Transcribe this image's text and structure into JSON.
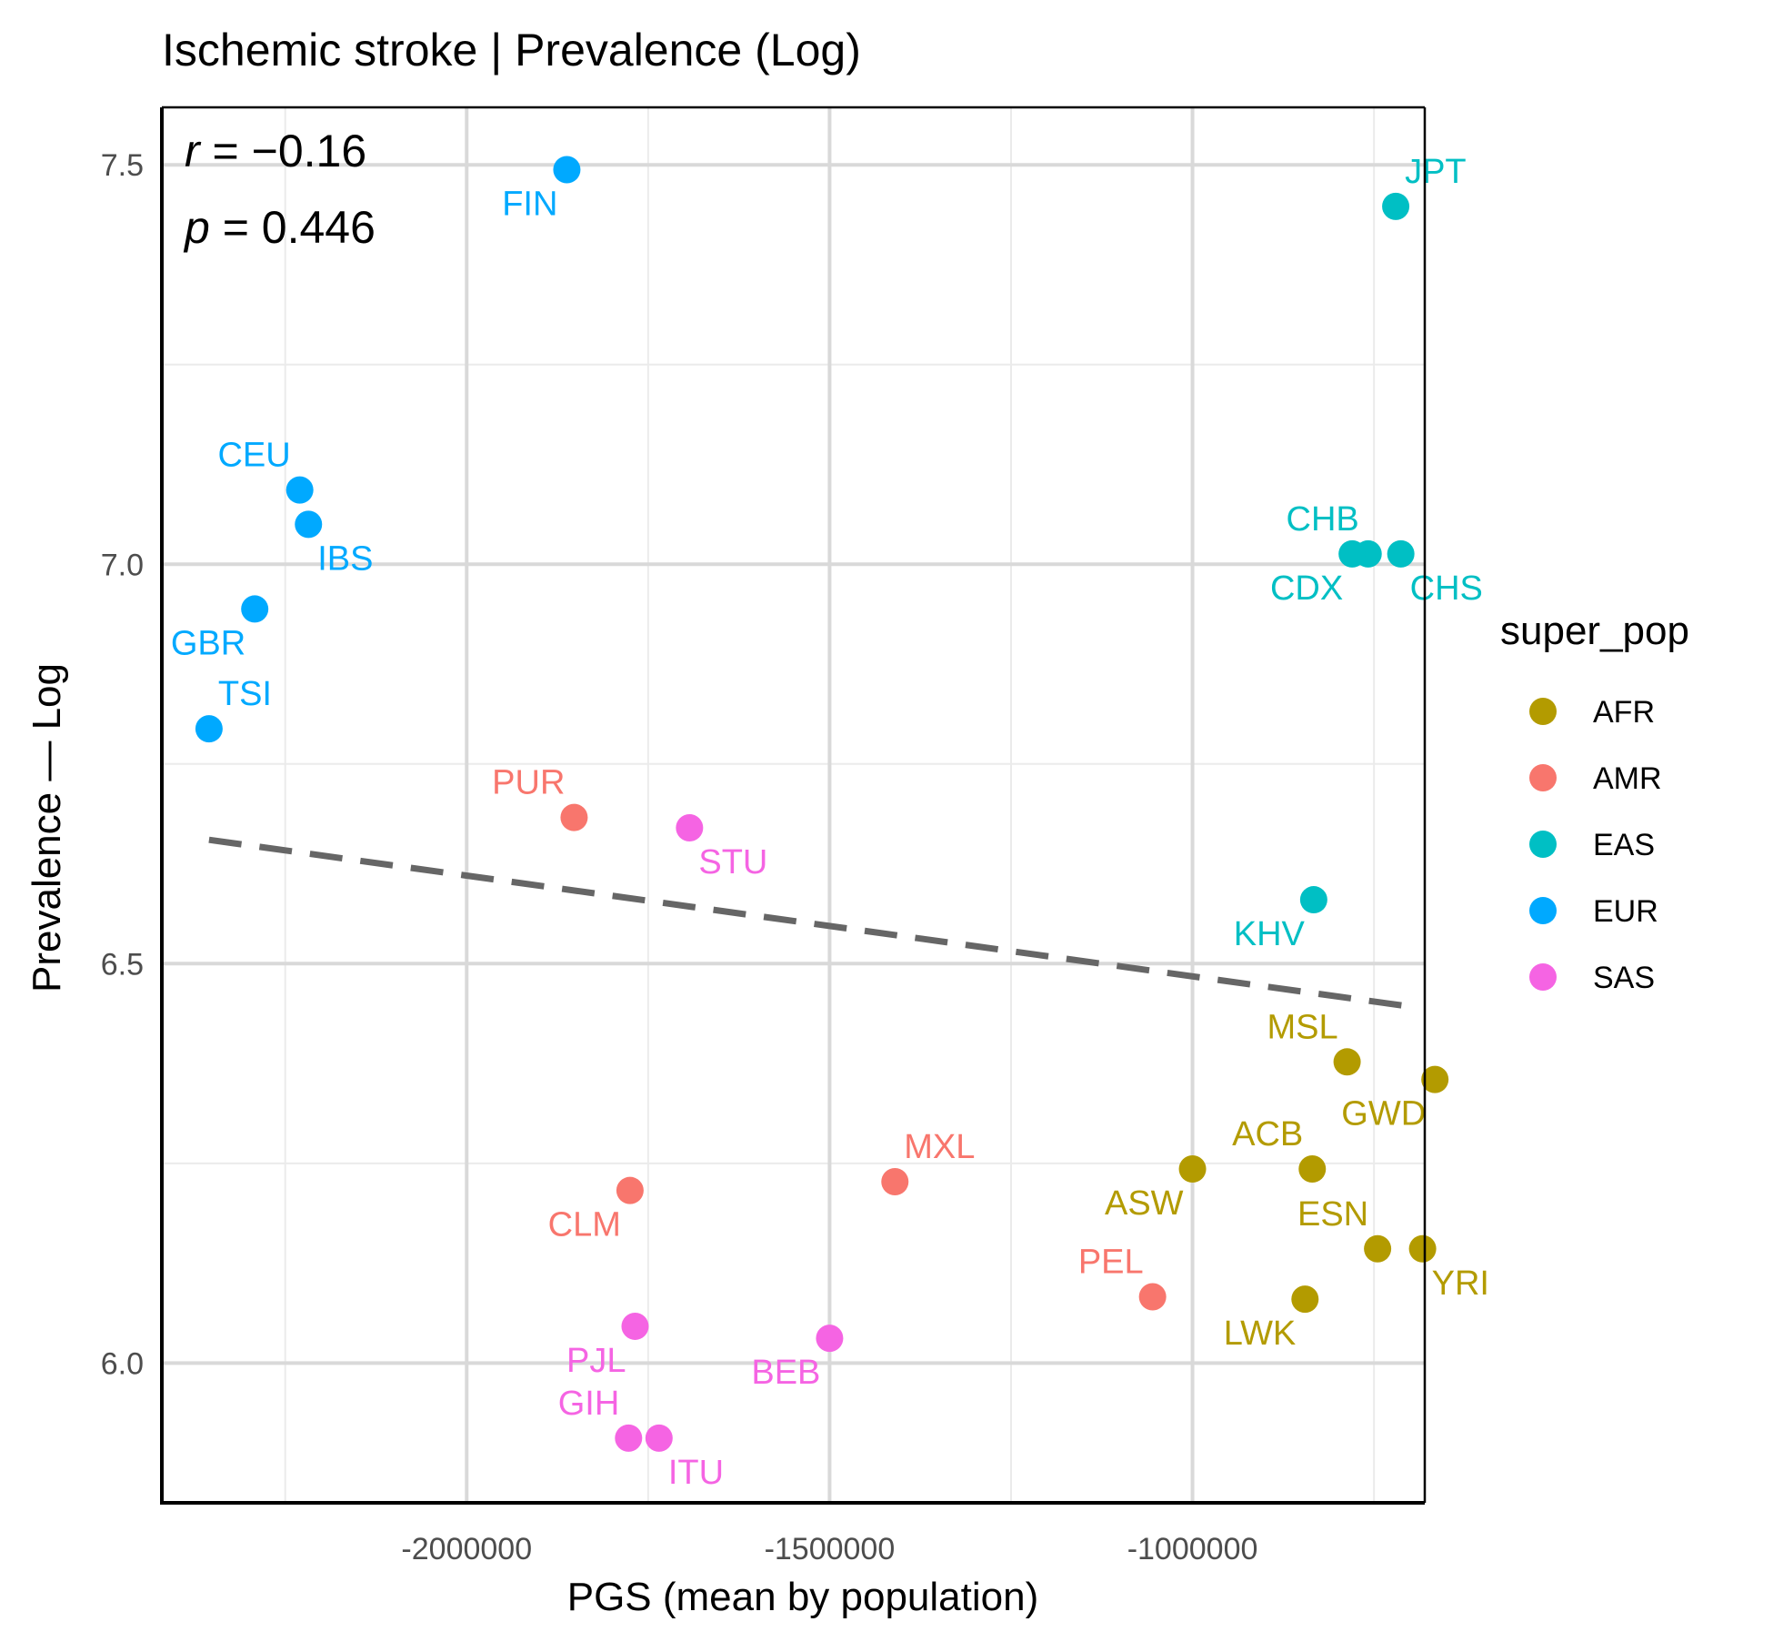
{
  "chart_data": {
    "type": "scatter",
    "title": "Ischemic stroke | Prevalence (Log)",
    "xlabel": "PGS (mean by population)",
    "ylabel": "Prevalence — Log",
    "xlim": [
      -2420000,
      -680000
    ],
    "ylim": [
      5.825,
      7.572
    ],
    "x_ticks": [
      -2000000,
      -1500000,
      -1000000
    ],
    "x_tick_labels": [
      "-2000000",
      "-1500000",
      "-1000000"
    ],
    "y_ticks": [
      6.0,
      6.5,
      7.0,
      7.5
    ],
    "y_tick_labels": [
      "6.0",
      "6.5",
      "7.0",
      "7.5"
    ],
    "grid": true,
    "stats": {
      "r_symbol": "r",
      "r_value": " = −0.16",
      "p_symbol": "p",
      "p_value": " = 0.446"
    },
    "legend": {
      "title": "super_pop",
      "placement": "right",
      "entries": [
        {
          "name": "AFR",
          "color": "#B39B00"
        },
        {
          "name": "AMR",
          "color": "#F8766D"
        },
        {
          "name": "EAS",
          "color": "#00BFC4"
        },
        {
          "name": "EUR",
          "color": "#00A9FF"
        },
        {
          "name": "SAS",
          "color": "#F564E3"
        }
      ]
    },
    "trend_line": {
      "style": "dashed",
      "color": "#666666",
      "x": [
        -2355000,
        -690000
      ],
      "y": [
        6.655,
        6.445
      ]
    },
    "points": [
      {
        "label": "FIN",
        "group": "EUR",
        "x": -1862000,
        "y": 7.494,
        "label_pos": "bl"
      },
      {
        "label": "CEU",
        "group": "EUR",
        "x": -2230000,
        "y": 7.093,
        "label_pos": "tl"
      },
      {
        "label": "IBS",
        "group": "EUR",
        "x": -2218000,
        "y": 7.05,
        "label_pos": "br"
      },
      {
        "label": "GBR",
        "group": "EUR",
        "x": -2292000,
        "y": 6.944,
        "label_pos": "bl"
      },
      {
        "label": "TSI",
        "group": "EUR",
        "x": -2355000,
        "y": 6.794,
        "label_pos": "tr"
      },
      {
        "label": "JPT",
        "group": "EAS",
        "x": -720000,
        "y": 7.448,
        "label_pos": "tr"
      },
      {
        "label": "CHB",
        "group": "EAS",
        "x": -758000,
        "y": 7.013,
        "label_pos": "tl"
      },
      {
        "label": "CDX",
        "group": "EAS",
        "x": -780000,
        "y": 7.013,
        "label_pos": "bl"
      },
      {
        "label": "CHS",
        "group": "EAS",
        "x": -713000,
        "y": 7.013,
        "label_pos": "br"
      },
      {
        "label": "KHV",
        "group": "EAS",
        "x": -833000,
        "y": 6.58,
        "label_pos": "bl"
      },
      {
        "label": "PUR",
        "group": "AMR",
        "x": -1852000,
        "y": 6.683,
        "label_pos": "tl"
      },
      {
        "label": "MXL",
        "group": "AMR",
        "x": -1410000,
        "y": 6.227,
        "label_pos": "tr"
      },
      {
        "label": "CLM",
        "group": "AMR",
        "x": -1775000,
        "y": 6.216,
        "label_pos": "bl"
      },
      {
        "label": "PEL",
        "group": "AMR",
        "x": -1055000,
        "y": 6.083,
        "label_pos": "tl"
      },
      {
        "label": "STU",
        "group": "SAS",
        "x": -1693000,
        "y": 6.67,
        "label_pos": "br"
      },
      {
        "label": "PJL",
        "group": "SAS",
        "x": -1768000,
        "y": 6.046,
        "label_pos": "bl"
      },
      {
        "label": "BEB",
        "group": "SAS",
        "x": -1500000,
        "y": 6.031,
        "label_pos": "bl"
      },
      {
        "label": "GIH",
        "group": "SAS",
        "x": -1777000,
        "y": 5.906,
        "label_pos": "tl"
      },
      {
        "label": "ITU",
        "group": "SAS",
        "x": -1735000,
        "y": 5.906,
        "label_pos": "br"
      },
      {
        "label": "MSL",
        "group": "AFR",
        "x": -787000,
        "y": 6.377,
        "label_pos": "tl"
      },
      {
        "label": "GWD",
        "group": "AFR",
        "x": -666000,
        "y": 6.355,
        "label_pos": "bl"
      },
      {
        "label": "ACB",
        "group": "AFR",
        "x": -835000,
        "y": 6.243,
        "label_pos": "tl"
      },
      {
        "label": "ASW",
        "group": "AFR",
        "x": -1000000,
        "y": 6.243,
        "label_pos": "bl"
      },
      {
        "label": "ESN",
        "group": "AFR",
        "x": -745000,
        "y": 6.143,
        "label_pos": "tl"
      },
      {
        "label": "YRI",
        "group": "AFR",
        "x": -683000,
        "y": 6.143,
        "label_pos": "br"
      },
      {
        "label": "LWK",
        "group": "AFR",
        "x": -845000,
        "y": 6.08,
        "label_pos": "bl"
      }
    ]
  }
}
